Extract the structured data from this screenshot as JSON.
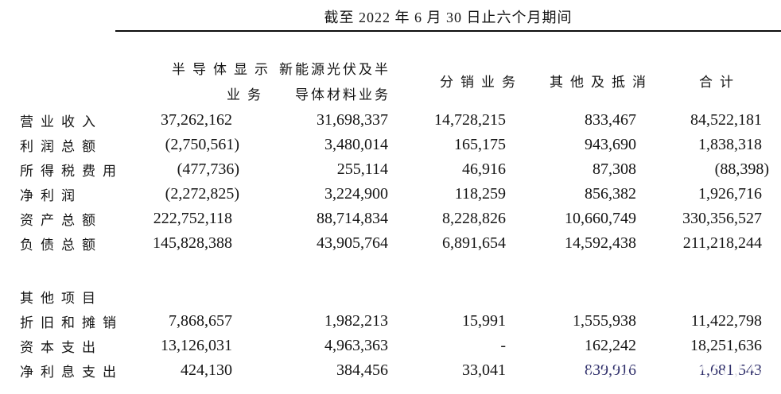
{
  "colors": {
    "background": "#ffffff",
    "text": "#1a1a1a",
    "rule": "#0d0d0d",
    "artifact_tint": "#30306b"
  },
  "table": {
    "title": "截至 2022 年 6 月 30 日止六个月期间",
    "columns": [
      {
        "line1": "半导体显示",
        "line2": "业务"
      },
      {
        "line1": "新能源光伏及半",
        "line2": "导体材料业务"
      },
      {
        "line1": "分销业务",
        "line2": ""
      },
      {
        "line1": "其他及抵消",
        "line2": ""
      },
      {
        "line1": "合计",
        "line2": ""
      }
    ],
    "rows": [
      {
        "label": "营业收入",
        "values": [
          "37,262,162",
          "31,698,337",
          "14,728,215",
          "833,467",
          "84,522,181"
        ]
      },
      {
        "label": "利润总额",
        "values": [
          "(2,750,561)",
          "3,480,014",
          "165,175",
          "943,690",
          "1,838,318"
        ]
      },
      {
        "label": "所得税费用",
        "values": [
          "(477,736)",
          "255,114",
          "46,916",
          "87,308",
          "(88,398)"
        ]
      },
      {
        "label": "净利润",
        "values": [
          "(2,272,825)",
          "3,224,900",
          "118,259",
          "856,382",
          "1,926,716"
        ]
      },
      {
        "label": "资产总额",
        "values": [
          "222,752,118",
          "88,714,834",
          "8,228,826",
          "10,660,749",
          "330,356,527"
        ]
      },
      {
        "label": "负债总额",
        "values": [
          "145,828,388",
          "43,905,764",
          "6,891,654",
          "14,592,438",
          "211,218,244"
        ]
      },
      {
        "label": "其他项目",
        "values": [
          "",
          "",
          "",
          "",
          ""
        ]
      },
      {
        "label": "折旧和摊销",
        "values": [
          "7,868,657",
          "1,982,213",
          "15,991",
          "1,555,938",
          "11,422,798"
        ]
      },
      {
        "label": "资本支出",
        "values": [
          "13,126,031",
          "4,963,363",
          "-",
          "162,242",
          "18,251,636"
        ]
      },
      {
        "label": "净利息支出",
        "values": [
          "424,130",
          "384,456",
          "33,041",
          "839,916",
          "1,681,543"
        ]
      }
    ]
  }
}
